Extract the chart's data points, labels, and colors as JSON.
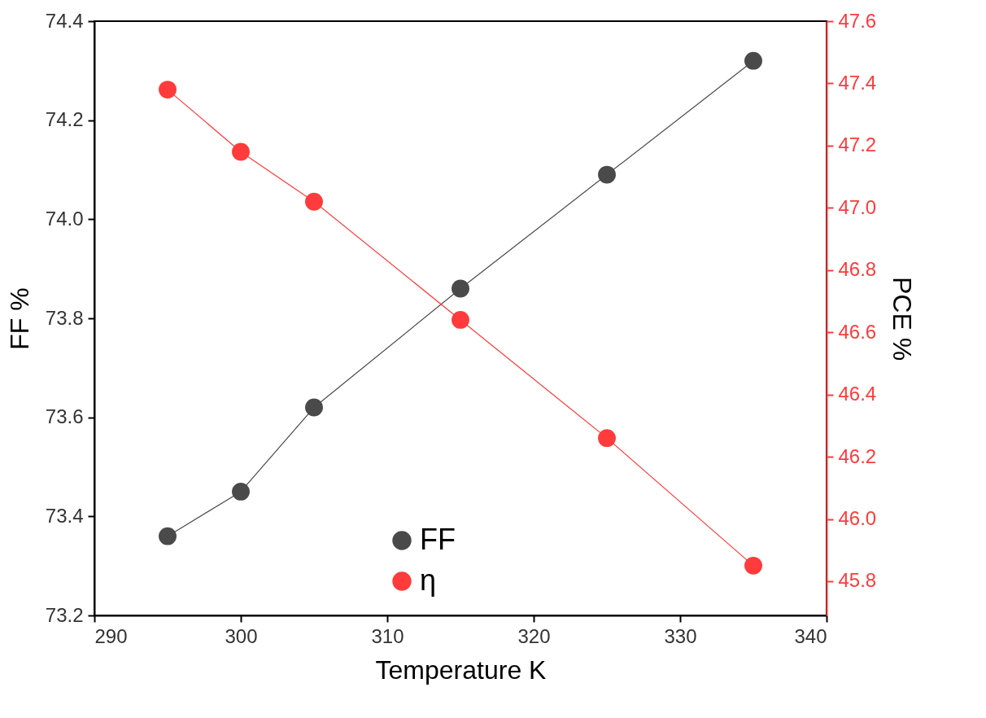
{
  "chart_data": {
    "type": "line",
    "xlabel": "Temperature K",
    "ylabel": "FF %",
    "y2label": "PCE %",
    "x": [
      295,
      300,
      305,
      315,
      325,
      335
    ],
    "series": [
      {
        "name": "FF",
        "color": "#4a4a4a",
        "values": [
          73.36,
          73.45,
          73.62,
          73.86,
          74.09,
          74.32
        ]
      },
      {
        "name": "η",
        "color": "#ff3b3b",
        "axis": "y2",
        "values": [
          47.38,
          47.18,
          47.02,
          46.64,
          46.26,
          45.85
        ]
      }
    ],
    "xlim": [
      290,
      340
    ],
    "xticks": [
      290,
      300,
      310,
      320,
      330,
      340
    ],
    "ylim": [
      73.2,
      74.4
    ],
    "yticks": [
      73.2,
      73.4,
      73.6,
      73.8,
      {
        "value": 74,
        "label": "74.0"
      },
      74.2,
      74.4
    ],
    "y2lim": [
      45.69,
      47.6
    ],
    "y2ticks": [
      45.8,
      {
        "value": 46,
        "label": "46.0"
      },
      46.2,
      46.4,
      46.6,
      46.8,
      {
        "value": 47,
        "label": "47.0"
      },
      47.2,
      47.4,
      47.6
    ],
    "grid": false,
    "legend": "bottom",
    "marker": "circle",
    "line_style": "solid"
  }
}
